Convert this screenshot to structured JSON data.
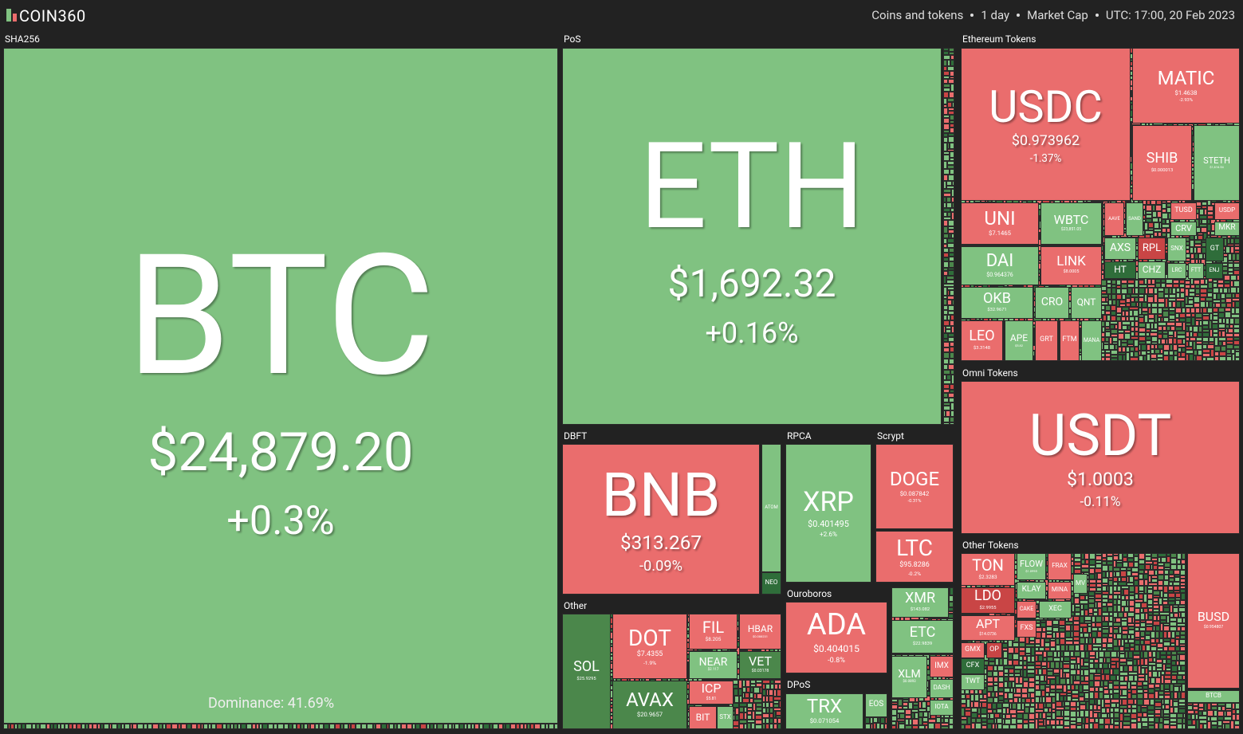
{
  "header": {
    "logo": "COIN360",
    "filters": [
      "Coins and tokens",
      "1 day",
      "Market Cap",
      "UTC: 17:00, 20 Feb 2023"
    ]
  },
  "groups": [
    {
      "name": "SHA256",
      "dominance": "Dominance: 41.69%",
      "tiles": [
        {
          "symbol": "BTC",
          "price": "$24,879.20",
          "change": "+0.3%",
          "color": "#80c281"
        }
      ]
    },
    {
      "name": "PoS",
      "tiles": [
        {
          "symbol": "ETH",
          "price": "$1,692.32",
          "change": "+0.16%",
          "color": "#80c281"
        }
      ]
    },
    {
      "name": "DBFT",
      "tiles": [
        {
          "symbol": "BNB",
          "price": "$313.267",
          "change": "-0.09%",
          "color": "#ea6d6d"
        },
        {
          "symbol": "ATOM",
          "color": "#80c281"
        },
        {
          "symbol": "NEO",
          "color": "#2f6d3a"
        }
      ]
    },
    {
      "name": "RPCA",
      "tiles": [
        {
          "symbol": "XRP",
          "price": "$0.401495",
          "change": "+2.6%",
          "color": "#80c281"
        }
      ]
    },
    {
      "name": "Scrypt",
      "tiles": [
        {
          "symbol": "DOGE",
          "price": "$0.087842",
          "change": "-0.31%",
          "color": "#ea6d6d"
        },
        {
          "symbol": "LTC",
          "price": "$95.8286",
          "change": "-0.2%",
          "color": "#ea6d6d"
        }
      ]
    },
    {
      "name": "Ouroboros",
      "tiles": [
        {
          "symbol": "ADA",
          "price": "$0.404015",
          "change": "-0.8%",
          "color": "#ea6d6d"
        }
      ]
    },
    {
      "name": "DPoS",
      "tiles": [
        {
          "symbol": "TRX",
          "price": "$0.071054",
          "color": "#80c281"
        },
        {
          "symbol": "EOS",
          "color": "#80c281"
        }
      ]
    },
    {
      "name": "Other",
      "tiles": [
        {
          "symbol": "SOL",
          "price": "$25.9295",
          "color": "#4b874b"
        },
        {
          "symbol": "DOT",
          "price": "$7.4355",
          "change": "-1.9%",
          "color": "#ea6d6d"
        },
        {
          "symbol": "AVAX",
          "price": "$20.9657",
          "color": "#4b874b"
        },
        {
          "symbol": "FIL",
          "price": "$8.205",
          "color": "#ea6d6d"
        },
        {
          "symbol": "HBAR",
          "price": "$0.088231",
          "color": "#ea6d6d"
        },
        {
          "symbol": "NEAR",
          "price": "$2.117",
          "color": "#80c281"
        },
        {
          "symbol": "VET",
          "price": "$0.03178",
          "color": "#4b874b"
        },
        {
          "symbol": "ICP",
          "price": "$5.81",
          "color": "#ea6d6d"
        },
        {
          "symbol": "BIT",
          "color": "#ea6d6d"
        },
        {
          "symbol": "STX",
          "color": "#80c281"
        }
      ]
    },
    {
      "tiles": [
        {
          "symbol": "XMR",
          "price": "$143.082",
          "color": "#80c281"
        },
        {
          "symbol": "ETC",
          "price": "$22.9839",
          "color": "#80c281"
        },
        {
          "symbol": "XLM",
          "price": "$0.0893",
          "color": "#80c281"
        },
        {
          "symbol": "IMX",
          "color": "#ea6d6d"
        },
        {
          "symbol": "DASH",
          "color": "#80c281"
        },
        {
          "symbol": "IOTA",
          "color": "#80c281"
        }
      ]
    },
    {
      "name": "Ethereum Tokens",
      "tiles": [
        {
          "symbol": "USDC",
          "price": "$0.973962",
          "change": "-1.37%",
          "color": "#ea6d6d"
        },
        {
          "symbol": "MATIC",
          "price": "$1.4638",
          "change": "-2.93%",
          "color": "#ea6d6d"
        },
        {
          "symbol": "SHIB",
          "price": "$0.000013",
          "color": "#ea6d6d"
        },
        {
          "symbol": "STETH",
          "price": "$1,616.54",
          "color": "#80c281"
        },
        {
          "symbol": "UNI",
          "price": "$7.1465",
          "color": "#ea6d6d"
        },
        {
          "symbol": "WBTC",
          "price": "$23,851.05",
          "color": "#80c281"
        },
        {
          "symbol": "DAI",
          "price": "$0.964376",
          "color": "#80c281"
        },
        {
          "symbol": "LINK",
          "price": "$8.0005",
          "color": "#ea6d6d"
        },
        {
          "symbol": "OKB",
          "price": "$32.9671",
          "color": "#80c281"
        },
        {
          "symbol": "CRO",
          "color": "#80c281"
        },
        {
          "symbol": "QNT",
          "color": "#80c281"
        },
        {
          "symbol": "LEO",
          "price": "$3.3148",
          "color": "#ea6d6d"
        },
        {
          "symbol": "APE",
          "price": "$5.82",
          "color": "#80c281"
        },
        {
          "symbol": "GRT",
          "color": "#ea6d6d"
        },
        {
          "symbol": "FTM",
          "color": "#ea6d6d"
        },
        {
          "symbol": "MANA",
          "color": "#80c281"
        },
        {
          "symbol": "AXS",
          "color": "#80c281"
        },
        {
          "symbol": "RPL",
          "color": "#c94545"
        },
        {
          "symbol": "HT",
          "color": "#2f6d3a"
        },
        {
          "symbol": "CHZ",
          "color": "#80c281"
        },
        {
          "symbol": "AAVE",
          "color": "#ea6d6d"
        },
        {
          "symbol": "SAND",
          "color": "#80c281"
        },
        {
          "symbol": "TUSD",
          "color": "#ea6d6d"
        },
        {
          "symbol": "USDP",
          "color": "#ea6d6d"
        },
        {
          "symbol": "CRV",
          "color": "#80c281"
        },
        {
          "symbol": "MKR",
          "color": "#80c281"
        },
        {
          "symbol": "SNX",
          "color": "#80c281"
        },
        {
          "symbol": "GT",
          "color": "#2f6d3a"
        },
        {
          "symbol": "ENJ",
          "color": "#2f6d3a"
        },
        {
          "symbol": "LRC",
          "color": "#80c281"
        },
        {
          "symbol": "FTT",
          "color": "#80c281"
        }
      ]
    },
    {
      "name": "Omni Tokens",
      "tiles": [
        {
          "symbol": "USDT",
          "price": "$1.0003",
          "change": "-0.11%",
          "color": "#ea6d6d"
        }
      ]
    },
    {
      "name": "Other Tokens",
      "tiles": [
        {
          "symbol": "TON",
          "price": "$2.3283",
          "color": "#ea6d6d"
        },
        {
          "symbol": "LDO",
          "price": "$2.9955",
          "color": "#c94545"
        },
        {
          "symbol": "APT",
          "price": "$14.0736",
          "color": "#ea6d6d"
        },
        {
          "symbol": "GMX",
          "color": "#ea6d6d"
        },
        {
          "symbol": "OP",
          "color": "#c94545"
        },
        {
          "symbol": "CFX",
          "color": "#2f6d3a"
        },
        {
          "symbol": "TWT",
          "color": "#80c281"
        },
        {
          "symbol": "FLOW",
          "price": "$1.0995",
          "color": "#80c281"
        },
        {
          "symbol": "KLAY",
          "color": "#80c281"
        },
        {
          "symbol": "CAKE",
          "color": "#ea6d6d"
        },
        {
          "symbol": "FXS",
          "color": "#ea6d6d"
        },
        {
          "symbol": "FRAX",
          "color": "#ea6d6d"
        },
        {
          "symbol": "MINA",
          "color": "#ea6d6d"
        },
        {
          "symbol": "XEC",
          "color": "#80c281"
        },
        {
          "symbol": "MV",
          "color": "#80c281"
        },
        {
          "symbol": "BUSD",
          "price": "$0.954807",
          "color": "#ea6d6d"
        },
        {
          "symbol": "BTCB",
          "color": "#80c281"
        }
      ]
    }
  ]
}
